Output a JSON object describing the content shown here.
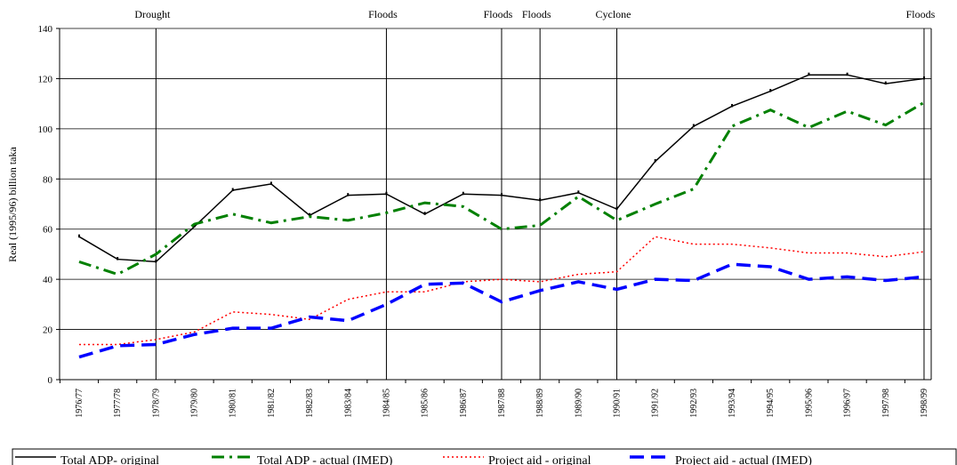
{
  "chart_data": {
    "type": "line",
    "y_label": "Real (1995/96) billion taka",
    "categories": [
      "1976/77",
      "1977/78",
      "1978/79",
      "1979/80",
      "1980/81",
      "1981/82",
      "1982/83",
      "1983/84",
      "1984/85",
      "1985/86",
      "1986/87",
      "1987/88",
      "1988/89",
      "1989/90",
      "1990/91",
      "1991/92",
      "1992/93",
      "1993/94",
      "1994/95",
      "1995/96",
      "1996/97",
      "1997/98",
      "1998/99"
    ],
    "series": [
      {
        "name": "Total ADP- original",
        "color": "#000000",
        "style": "solid",
        "values": [
          57,
          48,
          47,
          61,
          75.5,
          78,
          65.5,
          73.5,
          74,
          66,
          74,
          73.5,
          71.5,
          74.5,
          68,
          87,
          101,
          109,
          115,
          121.5,
          121.5,
          118,
          120
        ]
      },
      {
        "name": "Total ADP - actual (IMED)",
        "color": "#008000",
        "style": "dashdot",
        "values": [
          47,
          42,
          50,
          62,
          66,
          62.5,
          65,
          63.5,
          66.5,
          70.5,
          69,
          60,
          61.5,
          73,
          63.5,
          70,
          76,
          101,
          107.5,
          100.5,
          107,
          101.5,
          110.5
        ]
      },
      {
        "name": "Project aid - original",
        "color": "#ff0000",
        "style": "dotted",
        "values": [
          14,
          14,
          16,
          19,
          27,
          26,
          24,
          32,
          35,
          35,
          39,
          40,
          39,
          42,
          43,
          57,
          54,
          54,
          52.5,
          50.5,
          50.5,
          49,
          51
        ]
      },
      {
        "name": "Project aid - actual (IMED)",
        "color": "#0000ff",
        "style": "dashed",
        "values": [
          9,
          13.5,
          14,
          18,
          20.5,
          20.5,
          25,
          23.5,
          30,
          38,
          38.5,
          31,
          35.5,
          39,
          36,
          40,
          39.5,
          46,
          45,
          40,
          41,
          39.5,
          41
        ]
      }
    ],
    "annotations": [
      {
        "label": "Drought",
        "category": "1978/79"
      },
      {
        "label": "Floods",
        "category": "1984/85"
      },
      {
        "label": "Floods",
        "category": "1987/88"
      },
      {
        "label": "Floods",
        "category": "1988/89"
      },
      {
        "label": "Cyclone",
        "category": "1990/91"
      },
      {
        "label": "Floods",
        "category": "1998/99"
      }
    ],
    "ylim": [
      0,
      140
    ],
    "yticks": [
      0,
      20,
      40,
      60,
      80,
      100,
      120,
      140
    ],
    "grid": true
  }
}
